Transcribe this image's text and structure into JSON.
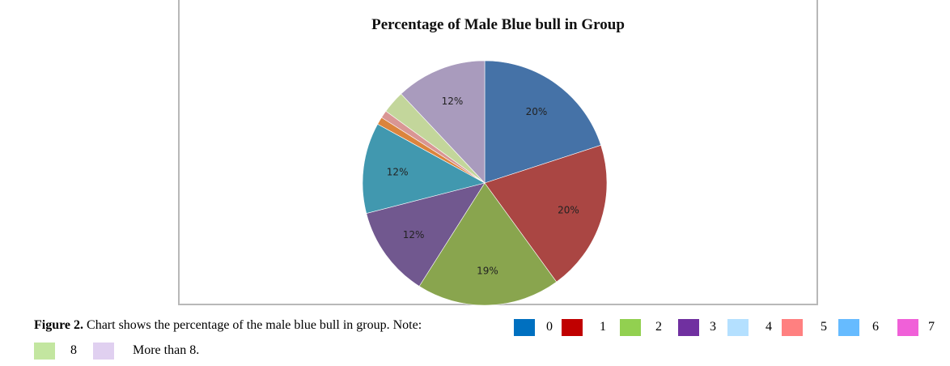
{
  "chart_data": {
    "type": "pie",
    "title": "Percentage of Male Blue bull in Group",
    "slices": [
      {
        "category": "0",
        "value": 20,
        "label": "20%",
        "color": "#4572A7"
      },
      {
        "category": "1",
        "value": 20,
        "label": "20%",
        "color": "#AA4643"
      },
      {
        "category": "2",
        "value": 19,
        "label": "19%",
        "color": "#89A54E"
      },
      {
        "category": "3",
        "value": 12,
        "label": "12%",
        "color": "#71588F"
      },
      {
        "category": "4",
        "value": 12,
        "label": "12%",
        "color": "#4198AF"
      },
      {
        "category": "5",
        "value": 1,
        "label": "",
        "color": "#DB843D"
      },
      {
        "category": "6",
        "value": 1,
        "label": "",
        "color": "#D99694"
      },
      {
        "category": "7",
        "value": 3,
        "label": "",
        "color": "#C3D69B"
      },
      {
        "category": "More than 8",
        "value": 12,
        "label": "12%",
        "color": "#A99BBD"
      }
    ]
  },
  "caption": {
    "figure_label": "Figure 2.",
    "text": " Chart shows the percentage of the male blue bull in group. Note:"
  },
  "legend": [
    {
      "label": "0",
      "color": "#0070C0"
    },
    {
      "label": "1",
      "color": "#C00000"
    },
    {
      "label": "2",
      "color": "#92D050"
    },
    {
      "label": "3",
      "color": "#7030A0"
    },
    {
      "label": "4",
      "color": "#B4E0FF"
    },
    {
      "label": "5",
      "color": "#FF8080"
    },
    {
      "label": "6",
      "color": "#66BBFF"
    },
    {
      "label": "7",
      "color": "#F060D8"
    },
    {
      "label": "8",
      "color": "#C3E6A0"
    },
    {
      "label": "More than 8.",
      "color": "#E0D0F0"
    }
  ]
}
